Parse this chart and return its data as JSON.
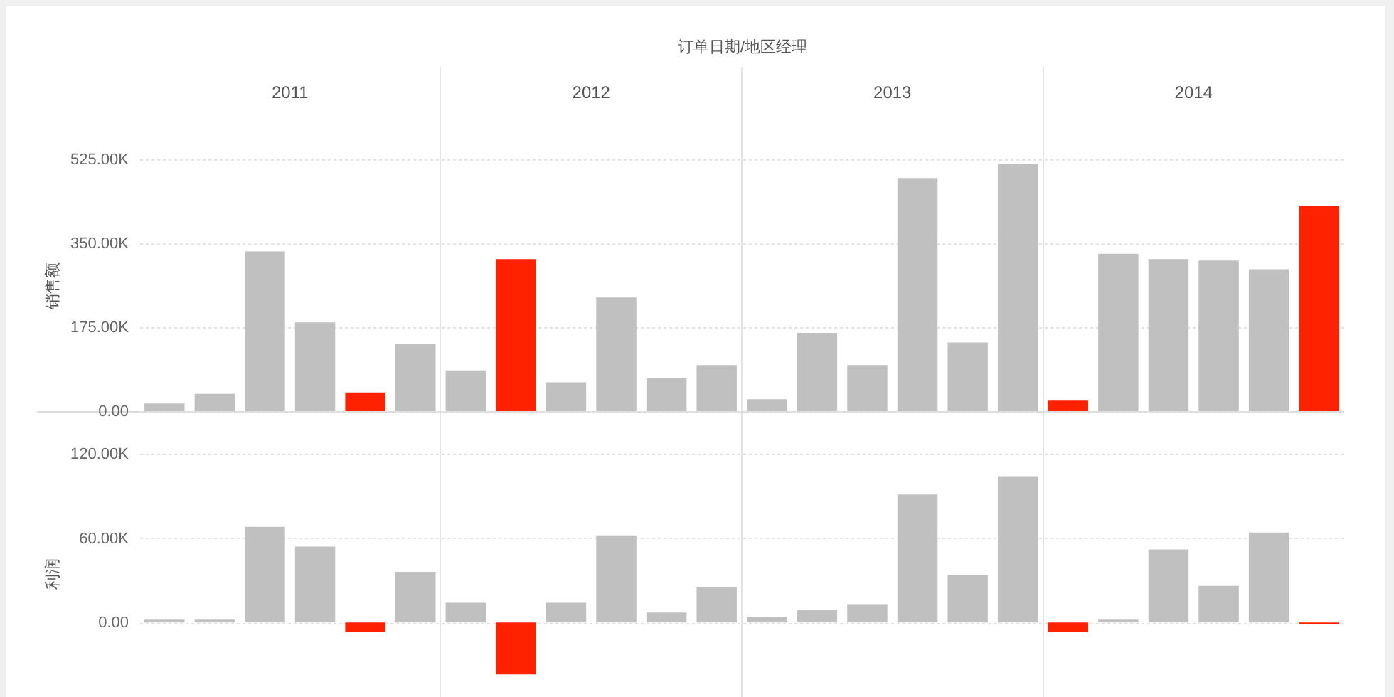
{
  "chart_data": [
    {
      "type": "bar",
      "xlabel": "订单日期/地区经理",
      "ylabel": "销售额",
      "categories": [
        "2011",
        "2012",
        "2013",
        "2014"
      ],
      "series": [
        {
          "colors": [
            "#c0c0c0",
            "#c0c0c0",
            "#c0c0c0",
            "#ff2200"
          ],
          "values": [
            16000,
            85000,
            25000,
            22000
          ]
        },
        {
          "colors": [
            "#c0c0c0",
            "#ff2200",
            "#c0c0c0",
            "#c0c0c0"
          ],
          "values": [
            36000,
            317000,
            163000,
            328000
          ]
        },
        {
          "color": "#c0c0c0",
          "values": [
            333000,
            60000,
            96000,
            317000
          ]
        },
        {
          "color": "#c0c0c0",
          "values": [
            185000,
            237000,
            486000,
            314000
          ]
        },
        {
          "colors": [
            "#ff2200",
            "#c0c0c0",
            "#c0c0c0",
            "#c0c0c0"
          ],
          "values": [
            39000,
            69000,
            143000,
            296000
          ]
        },
        {
          "colors": [
            "#c0c0c0",
            "#c0c0c0",
            "#c0c0c0",
            "#ff2200"
          ],
          "values": [
            140000,
            96000,
            516000,
            428000
          ]
        }
      ],
      "ylim": [
        0,
        525000
      ],
      "yticks": [
        {
          "value": 0,
          "label": "0.00"
        },
        {
          "value": 175000,
          "label": "175.00K"
        },
        {
          "value": 350000,
          "label": "350.00K"
        },
        {
          "value": 525000,
          "label": "525.00K"
        }
      ],
      "grid": "y"
    },
    {
      "type": "bar",
      "ylabel": "利润",
      "categories": [
        "2011",
        "2012",
        "2013",
        "2014"
      ],
      "series": [
        {
          "colors": [
            "#c0c0c0",
            "#c0c0c0",
            "#c0c0c0",
            "#ff2200"
          ],
          "values": [
            2000,
            14000,
            4000,
            -7000
          ]
        },
        {
          "colors": [
            "#c0c0c0",
            "#ff2200",
            "#c0c0c0",
            "#c0c0c0"
          ],
          "values": [
            2000,
            -37000,
            9000,
            2000
          ]
        },
        {
          "color": "#c0c0c0",
          "values": [
            68000,
            14000,
            13000,
            52000
          ]
        },
        {
          "color": "#c0c0c0",
          "values": [
            54000,
            62000,
            91000,
            26000
          ]
        },
        {
          "colors": [
            "#ff2200",
            "#c0c0c0",
            "#c0c0c0",
            "#c0c0c0"
          ],
          "values": [
            -7000,
            7000,
            34000,
            64000
          ]
        },
        {
          "colors": [
            "#c0c0c0",
            "#c0c0c0",
            "#c0c0c0",
            "#ff2200"
          ],
          "values": [
            36000,
            25000,
            104000,
            -1000
          ]
        }
      ],
      "ylim": [
        -50000,
        120000
      ],
      "yticks": [
        {
          "value": 0,
          "label": "0.00"
        },
        {
          "value": 60000,
          "label": "60.00K"
        },
        {
          "value": 120000,
          "label": "120.00K"
        }
      ],
      "grid": "y",
      "tick_labels": "y"
    }
  ]
}
